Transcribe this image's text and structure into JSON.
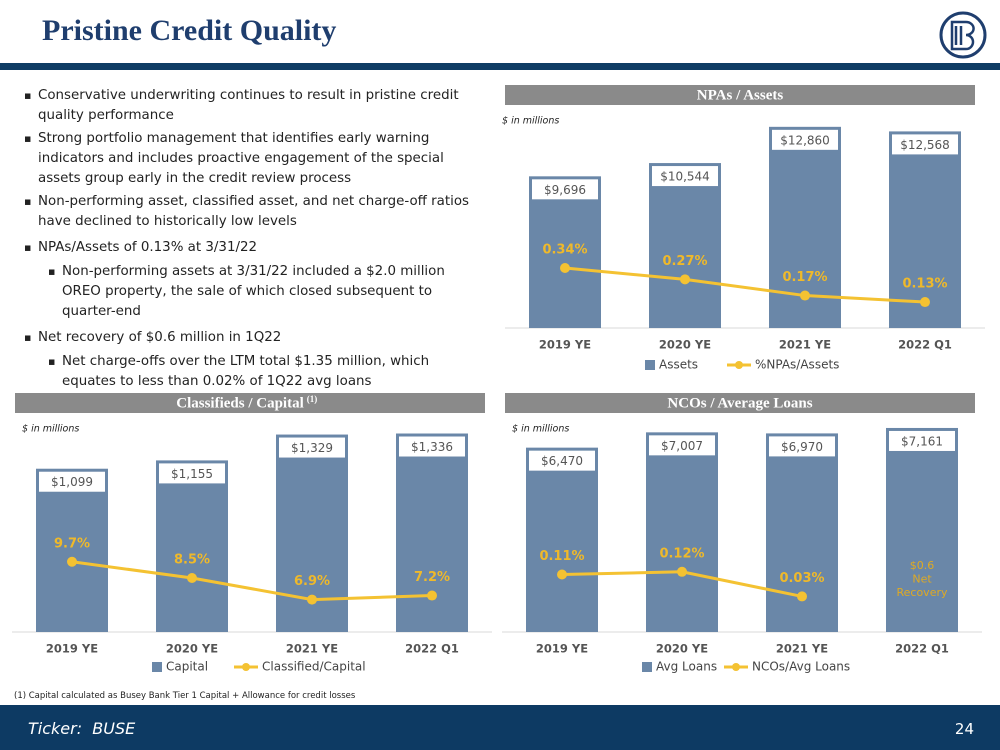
{
  "header": {
    "title": "Pristine Credit Quality"
  },
  "bullets": [
    {
      "text": "Conservative underwriting continues to result in pristine credit quality performance"
    },
    {
      "text": "Strong portfolio management that identifies early warning indicators and includes proactive engagement of the special assets group early in the credit review process"
    },
    {
      "text": "Non-performing asset, classified asset, and net charge-off ratios have declined to historically low levels"
    },
    {
      "text": "NPAs/Assets of 0.13% at 3/31/22",
      "sub": [
        "Non-performing assets at 3/31/22 included a $2.0 million OREO property, the sale of which closed subsequent to quarter-end"
      ]
    },
    {
      "text": "Net recovery of $0.6 million in 1Q22",
      "sub": [
        "Net charge-offs over the LTM total $1.35 million, which equates to less than 0.02% of 1Q22 avg loans"
      ]
    }
  ],
  "chart_data": [
    {
      "type": "combo",
      "title": "NPAs / Assets",
      "subtitle": "$ in millions",
      "categories": [
        "2019 YE",
        "2020 YE",
        "2021 YE",
        "2022 Q1"
      ],
      "ylim": [
        0,
        14000
      ],
      "y2lim": [
        -0.03,
        1.32
      ],
      "series": [
        {
          "name": "Assets",
          "type": "bar",
          "color": "#6a87a8",
          "values": [
            9696,
            10544,
            12860,
            12568
          ],
          "value_labels": [
            "$9,696",
            "$10,544",
            "$12,860",
            "$12,568"
          ]
        },
        {
          "name": "%NPAs/Assets",
          "type": "line",
          "axis": "y2",
          "color": "#f4c232",
          "values": [
            0.34,
            0.27,
            0.17,
            0.13
          ],
          "value_labels": [
            "0.34%",
            "0.27%",
            "0.17%",
            "0.13%"
          ]
        }
      ]
    },
    {
      "type": "combo",
      "title": "Classifieds / Capital",
      "title_note": "(1)",
      "subtitle": "$ in millions",
      "categories": [
        "2019 YE",
        "2020 YE",
        "2021 YE",
        "2022 Q1"
      ],
      "ylim": [
        0,
        1400
      ],
      "y2lim": [
        4.5,
        19.9
      ],
      "series": [
        {
          "name": "Capital",
          "type": "bar",
          "color": "#6a87a8",
          "values": [
            1099,
            1155,
            1329,
            1336
          ],
          "value_labels": [
            "$1,099",
            "$1,155",
            "$1,329",
            "$1,336"
          ]
        },
        {
          "name": "Classified/Capital",
          "type": "line",
          "axis": "y2",
          "color": "#f4c232",
          "values": [
            9.7,
            8.5,
            6.9,
            7.2
          ],
          "value_labels": [
            "9.7%",
            "8.5%",
            "6.9%",
            "7.2%"
          ]
        }
      ]
    },
    {
      "type": "combo",
      "title": "NCOs / Average Loans",
      "subtitle": "$ in millions",
      "categories": [
        "2019 YE",
        "2020 YE",
        "2021 YE",
        "2022 Q1"
      ],
      "ylim": [
        0,
        7300
      ],
      "y2lim": [
        -0.1,
        0.66
      ],
      "annotation": [
        "$0.6",
        "Net",
        "Recovery"
      ],
      "series": [
        {
          "name": "Avg Loans",
          "type": "bar",
          "color": "#6a87a8",
          "values": [
            6470,
            7007,
            6970,
            7161
          ],
          "value_labels": [
            "$6,470",
            "$7,007",
            "$6,970",
            "$7,161"
          ]
        },
        {
          "name": "NCOs/Avg Loans",
          "type": "line",
          "axis": "y2",
          "color": "#f4c232",
          "values": [
            0.11,
            0.12,
            0.03,
            null
          ],
          "value_labels": [
            "0.11%",
            "0.12%",
            "0.03%",
            null
          ]
        }
      ]
    }
  ],
  "footnote": "(1) Capital calculated as Busey Bank Tier 1 Capital + Allowance for credit losses",
  "footer": {
    "ticker": "Ticker:  BUSE",
    "page": "24"
  }
}
